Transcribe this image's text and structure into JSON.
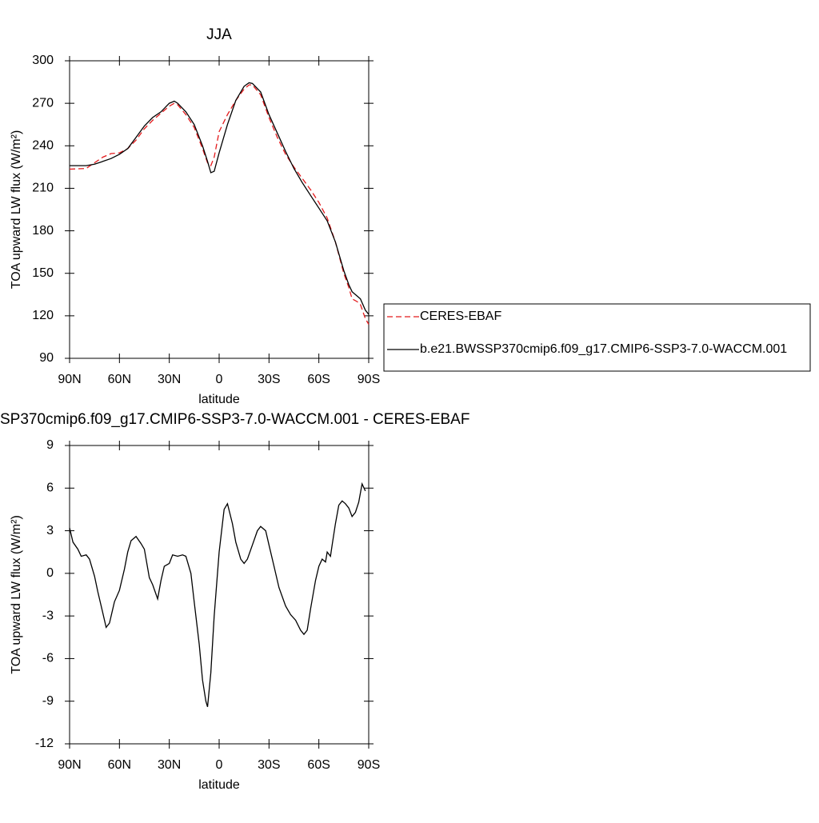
{
  "chart_data": [
    {
      "type": "line",
      "title": "JJA",
      "xlabel": "latitude",
      "ylabel": "TOA upward LW flux (W/m²)",
      "x": [
        90,
        80,
        75,
        70,
        65,
        60,
        55,
        50,
        45,
        40,
        35,
        30,
        27,
        25,
        20,
        15,
        10,
        7,
        5,
        3,
        0,
        -5,
        -10,
        -15,
        -18,
        -20,
        -25,
        -30,
        -35,
        -40,
        -45,
        -50,
        -55,
        -60,
        -65,
        -70,
        -75,
        -78,
        -80,
        -83,
        -85,
        -88,
        -90
      ],
      "xlim": [
        90,
        -90
      ],
      "xticks": [
        {
          "value": 90,
          "label": "90N"
        },
        {
          "value": 60,
          "label": "60N"
        },
        {
          "value": 30,
          "label": "30N"
        },
        0,
        {
          "value": -30,
          "label": "30S"
        },
        {
          "value": -60,
          "label": "60S"
        },
        {
          "value": -90,
          "label": "90S"
        }
      ],
      "ylim": [
        90,
        300
      ],
      "yticks": [
        90,
        120,
        150,
        180,
        210,
        240,
        270,
        300
      ],
      "legend": "right",
      "series": [
        {
          "name": "CERES-EBAF",
          "color": "#e41a1c",
          "linestyle": "dashed",
          "values": [
            223.5,
            224,
            228,
            232,
            234.5,
            235,
            238,
            244,
            252,
            258,
            263,
            268,
            270,
            269,
            262,
            253,
            238,
            228,
            226,
            232,
            250,
            262,
            272,
            280,
            283,
            283,
            276,
            260,
            246,
            234,
            225,
            217,
            209,
            200,
            189,
            172,
            150,
            140,
            132,
            130,
            128,
            118,
            114
          ]
        },
        {
          "name": "b.e21.BWSSP370cmip6.f09_g17.CMIP6-SSP3-7.0-WACCM.001",
          "color": "#000000",
          "linestyle": "solid",
          "values": [
            226,
            226,
            227,
            229,
            231,
            234,
            238,
            246,
            254,
            260,
            264,
            270,
            271.5,
            270,
            264,
            255,
            240,
            229,
            221,
            222,
            235,
            255,
            272,
            282,
            284.5,
            284,
            278,
            262,
            249,
            236,
            224,
            214,
            205,
            196,
            187,
            172,
            152,
            142,
            137,
            134,
            132,
            124,
            121
          ]
        }
      ]
    },
    {
      "type": "line",
      "title": "SP370cmip6.f09_g17.CMIP6-SSP3-7.0-WACCM.001 - CERES-EBAF",
      "xlabel": "latitude",
      "ylabel": "TOA upward LW flux (W/m²)",
      "x": [
        90,
        88,
        85,
        83,
        80,
        78,
        75,
        73,
        70,
        68,
        66,
        63,
        60,
        57,
        55,
        53,
        50,
        47,
        45,
        42,
        40,
        37,
        35,
        33,
        30,
        28,
        25,
        22,
        20,
        17,
        15,
        12,
        10,
        8,
        7,
        5,
        3,
        0,
        -3,
        -5,
        -8,
        -10,
        -13,
        -15,
        -17,
        -20,
        -23,
        -25,
        -28,
        -30,
        -33,
        -36,
        -40,
        -43,
        -46,
        -49,
        -51,
        -53,
        -55,
        -58,
        -60,
        -62,
        -64,
        -65,
        -67,
        -68,
        -70,
        -72,
        -74,
        -76,
        -78,
        -80,
        -82,
        -84,
        -86,
        -88
      ],
      "xlim": [
        90,
        -90
      ],
      "xticks": [
        {
          "value": 90,
          "label": "90N"
        },
        {
          "value": 60,
          "label": "60N"
        },
        {
          "value": 30,
          "label": "30N"
        },
        0,
        {
          "value": -30,
          "label": "30S"
        },
        {
          "value": -60,
          "label": "60S"
        },
        {
          "value": -90,
          "label": "90S"
        }
      ],
      "ylim": [
        -12,
        9
      ],
      "yticks": [
        -12,
        -9,
        -6,
        -3,
        0,
        3,
        6,
        9
      ],
      "series": [
        {
          "color": "#000000",
          "linestyle": "solid",
          "values": [
            3.2,
            2.2,
            1.7,
            1.2,
            1.3,
            1.0,
            -0.2,
            -1.3,
            -2.8,
            -3.8,
            -3.5,
            -2.0,
            -1.2,
            0.3,
            1.5,
            2.3,
            2.6,
            2.1,
            1.7,
            -0.3,
            -0.8,
            -1.8,
            -0.5,
            0.5,
            0.7,
            1.3,
            1.2,
            1.3,
            1.2,
            0.0,
            -2.0,
            -5.0,
            -7.5,
            -9.0,
            -9.4,
            -7.0,
            -3.0,
            1.5,
            4.5,
            4.9,
            3.5,
            2.2,
            1.0,
            0.7,
            1.0,
            2.0,
            3.0,
            3.3,
            3.0,
            2.0,
            0.5,
            -1.0,
            -2.3,
            -2.9,
            -3.3,
            -4.0,
            -4.3,
            -4.0,
            -2.5,
            -0.5,
            0.5,
            1.0,
            0.8,
            1.5,
            1.2,
            2.0,
            3.5,
            4.8,
            5.1,
            4.9,
            4.6,
            4.0,
            4.3,
            5.0,
            6.3,
            5.8
          ]
        }
      ]
    }
  ]
}
